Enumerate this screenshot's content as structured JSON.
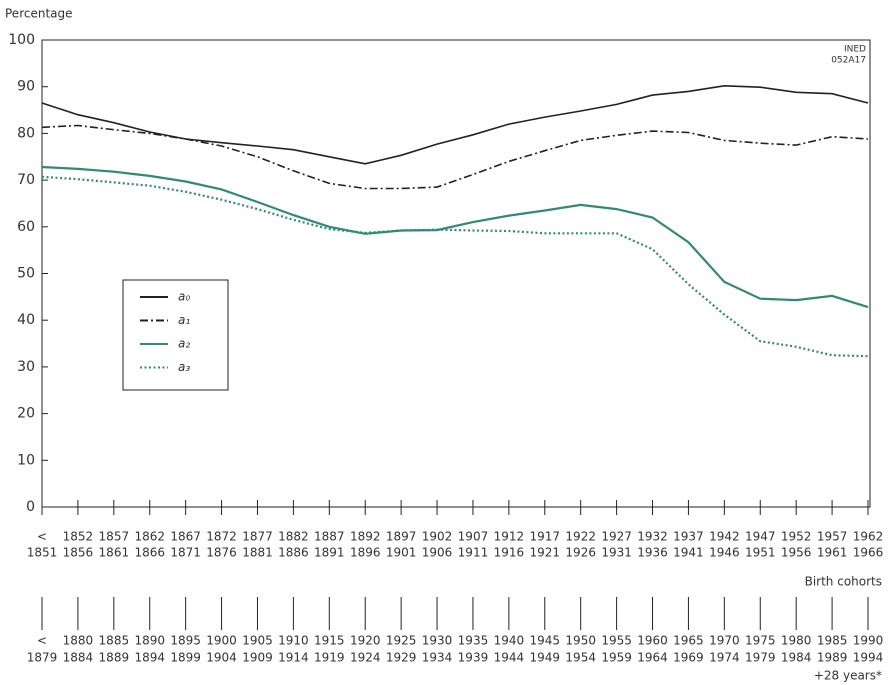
{
  "chart_data": {
    "type": "line",
    "y_label": "Percentage",
    "annotation": [
      "INED",
      "052A17"
    ],
    "x_label": "Birth cohorts",
    "x2_label": "+28 years*",
    "categories": [
      [
        "<",
        "1851"
      ],
      [
        "1852",
        "1856"
      ],
      [
        "1857",
        "1861"
      ],
      [
        "1862",
        "1866"
      ],
      [
        "1867",
        "1871"
      ],
      [
        "1872",
        "1876"
      ],
      [
        "1877",
        "1881"
      ],
      [
        "1882",
        "1886"
      ],
      [
        "1887",
        "1891"
      ],
      [
        "1892",
        "1896"
      ],
      [
        "1897",
        "1901"
      ],
      [
        "1902",
        "1906"
      ],
      [
        "1907",
        "1911"
      ],
      [
        "1912",
        "1916"
      ],
      [
        "1917",
        "1921"
      ],
      [
        "1922",
        "1926"
      ],
      [
        "1927",
        "1931"
      ],
      [
        "1932",
        "1936"
      ],
      [
        "1937",
        "1941"
      ],
      [
        "1942",
        "1946"
      ],
      [
        "1947",
        "1951"
      ],
      [
        "1952",
        "1956"
      ],
      [
        "1957",
        "1961"
      ],
      [
        "1962",
        "1966"
      ]
    ],
    "categories2": [
      [
        "<",
        "1879"
      ],
      [
        "1880",
        "1884"
      ],
      [
        "1885",
        "1889"
      ],
      [
        "1890",
        "1894"
      ],
      [
        "1895",
        "1899"
      ],
      [
        "1900",
        "1904"
      ],
      [
        "1905",
        "1909"
      ],
      [
        "1910",
        "1914"
      ],
      [
        "1915",
        "1919"
      ],
      [
        "1920",
        "1924"
      ],
      [
        "1925",
        "1929"
      ],
      [
        "1930",
        "1934"
      ],
      [
        "1935",
        "1939"
      ],
      [
        "1940",
        "1944"
      ],
      [
        "1945",
        "1949"
      ],
      [
        "1950",
        "1954"
      ],
      [
        "1955",
        "1959"
      ],
      [
        "1960",
        "1964"
      ],
      [
        "1965",
        "1969"
      ],
      [
        "1970",
        "1974"
      ],
      [
        "1975",
        "1979"
      ],
      [
        "1980",
        "1984"
      ],
      [
        "1985",
        "1989"
      ],
      [
        "1990",
        "1994"
      ]
    ],
    "series": [
      {
        "name": "a₀",
        "color": "#222222",
        "dash": "solid",
        "values": [
          86.5,
          84,
          82.3,
          80.3,
          78.8,
          78,
          77.3,
          76.5,
          75,
          73.5,
          75.3,
          77.7,
          79.7,
          82,
          83.5,
          84.8,
          86.2,
          88.2,
          89,
          90.2,
          89.9,
          88.8,
          88.5,
          86.5
        ]
      },
      {
        "name": "a₁",
        "color": "#222222",
        "dash": "dashdot",
        "values": [
          81.3,
          81.7,
          80.8,
          80,
          78.8,
          77.3,
          75,
          72,
          69.3,
          68.2,
          68.2,
          68.5,
          71.2,
          74,
          76.3,
          78.5,
          79.6,
          80.5,
          80.2,
          78.5,
          77.9,
          77.5,
          79.3,
          78.8
        ]
      },
      {
        "name": "a₂",
        "color": "#2e8b74",
        "dash": "solid",
        "values": [
          72.8,
          72.4,
          71.8,
          70.9,
          69.7,
          68,
          65.3,
          62.5,
          60,
          58.5,
          59.2,
          59.3,
          61,
          62.4,
          63.5,
          64.7,
          63.8,
          62,
          56.7,
          48.2,
          44.6,
          44.3,
          45.2,
          42.8
        ]
      },
      {
        "name": "a₃",
        "color": "#2e8b74",
        "dash": "dotted",
        "values": [
          70.7,
          70.2,
          69.5,
          68.8,
          67.5,
          65.8,
          63.8,
          61.5,
          59.5,
          58.7,
          59.2,
          59.4,
          59.2,
          59.1,
          58.6,
          58.6,
          58.6,
          55.2,
          47.7,
          41.2,
          35.5,
          34.3,
          32.5,
          32.3
        ]
      }
    ],
    "ylim": [
      0,
      100
    ],
    "yticks": [
      0,
      10,
      20,
      30,
      40,
      50,
      60,
      70,
      80,
      90,
      100
    ]
  }
}
